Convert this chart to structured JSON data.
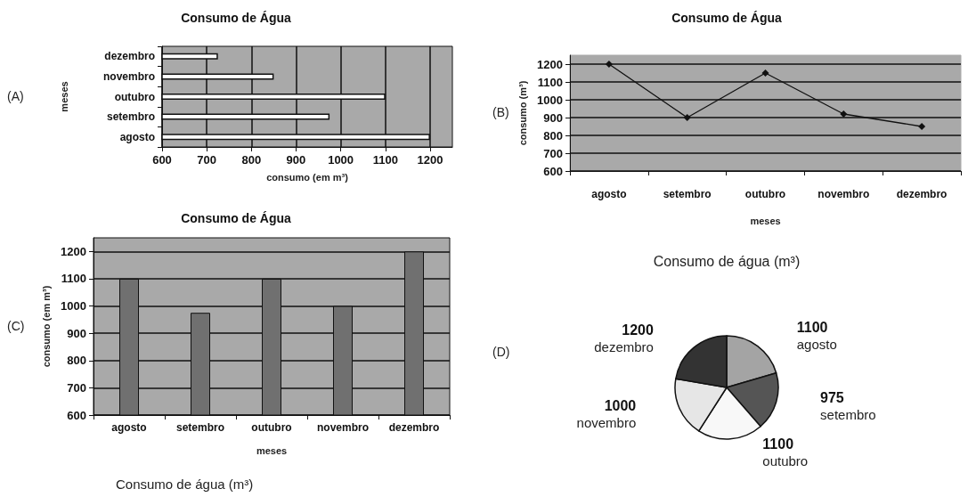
{
  "chart_data": [
    {
      "type": "bar",
      "orientation": "horizontal",
      "title": "Consumo de Água",
      "xlabel": "consumo (em m³)",
      "ylabel": "meses",
      "categories": [
        "dezembro",
        "novembro",
        "outubro",
        "setembro",
        "agosto"
      ],
      "values": [
        725,
        850,
        1100,
        975,
        1200
      ],
      "color": "#ffffff",
      "xlim": [
        600,
        1250
      ],
      "xticks": [
        600,
        700,
        800,
        900,
        1000,
        1100,
        1200
      ],
      "grid": "x",
      "annotations": [
        "(A)"
      ]
    },
    {
      "type": "line",
      "title": "Consumo de Água",
      "xlabel": "meses",
      "ylabel": "consumo (m³)",
      "categories": [
        "agosto",
        "setembro",
        "outubro",
        "novembro",
        "dezembro"
      ],
      "values": [
        1200,
        900,
        1150,
        920,
        850
      ],
      "color": "#111111",
      "marker": "diamond",
      "ylim": [
        600,
        1250
      ],
      "yticks": [
        600,
        700,
        800,
        900,
        1000,
        1100,
        1200
      ],
      "grid": "y",
      "annotations": [
        "(B)"
      ]
    },
    {
      "type": "bar",
      "title": "Consumo de Água",
      "xlabel": "meses",
      "ylabel": "consumo (em m³)",
      "categories": [
        "agosto",
        "setembro",
        "outubro",
        "novembro",
        "dezembro"
      ],
      "values": [
        1100,
        975,
        1100,
        1000,
        1200
      ],
      "color": "#707070",
      "ylim": [
        600,
        1250
      ],
      "yticks": [
        600,
        700,
        800,
        900,
        1000,
        1100,
        1200
      ],
      "grid": "y",
      "annotations": [
        "(C)",
        "Consumo de água (m³)"
      ]
    },
    {
      "type": "pie",
      "title": "Consumo de água (m³)",
      "categories": [
        "agosto",
        "setembro",
        "outubro",
        "novembro",
        "dezembro"
      ],
      "values": [
        1100,
        975,
        1100,
        1000,
        1200
      ],
      "colors": [
        "#a4a4a4",
        "#555555",
        "#f8f8f8",
        "#e6e6e6",
        "#333333"
      ],
      "data_labels": true,
      "annotations": [
        "(D)"
      ]
    }
  ]
}
